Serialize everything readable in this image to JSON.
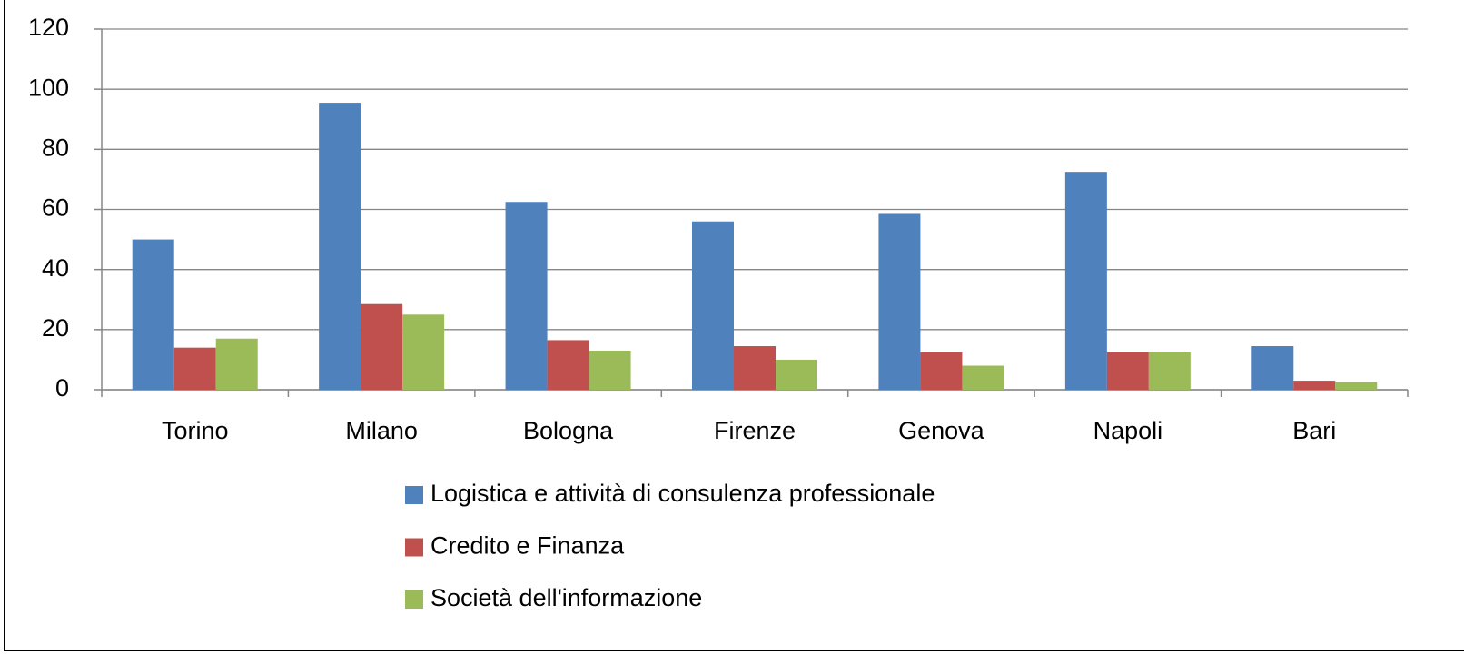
{
  "chart_data": {
    "type": "bar",
    "categories": [
      "Torino",
      "Milano",
      "Bologna",
      "Firenze",
      "Genova",
      "Napoli",
      "Bari"
    ],
    "series": [
      {
        "name": "Logistica e attività di consulenza professionale",
        "color": "#4f81bd",
        "values": [
          50,
          95.5,
          62.5,
          56,
          58.5,
          72.5,
          14.5
        ]
      },
      {
        "name": "Credito e Finanza",
        "color": "#c0504d",
        "values": [
          14,
          28.5,
          16.5,
          14.5,
          12.5,
          12.5,
          3
        ]
      },
      {
        "name": "Società dell'informazione",
        "color": "#9bbb59",
        "values": [
          17,
          25,
          13,
          10,
          8,
          12.5,
          2.5
        ]
      }
    ],
    "ylim": [
      0,
      120
    ],
    "yticks": [
      0,
      20,
      40,
      60,
      80,
      100,
      120
    ],
    "grid": true,
    "legend": "bottom"
  }
}
